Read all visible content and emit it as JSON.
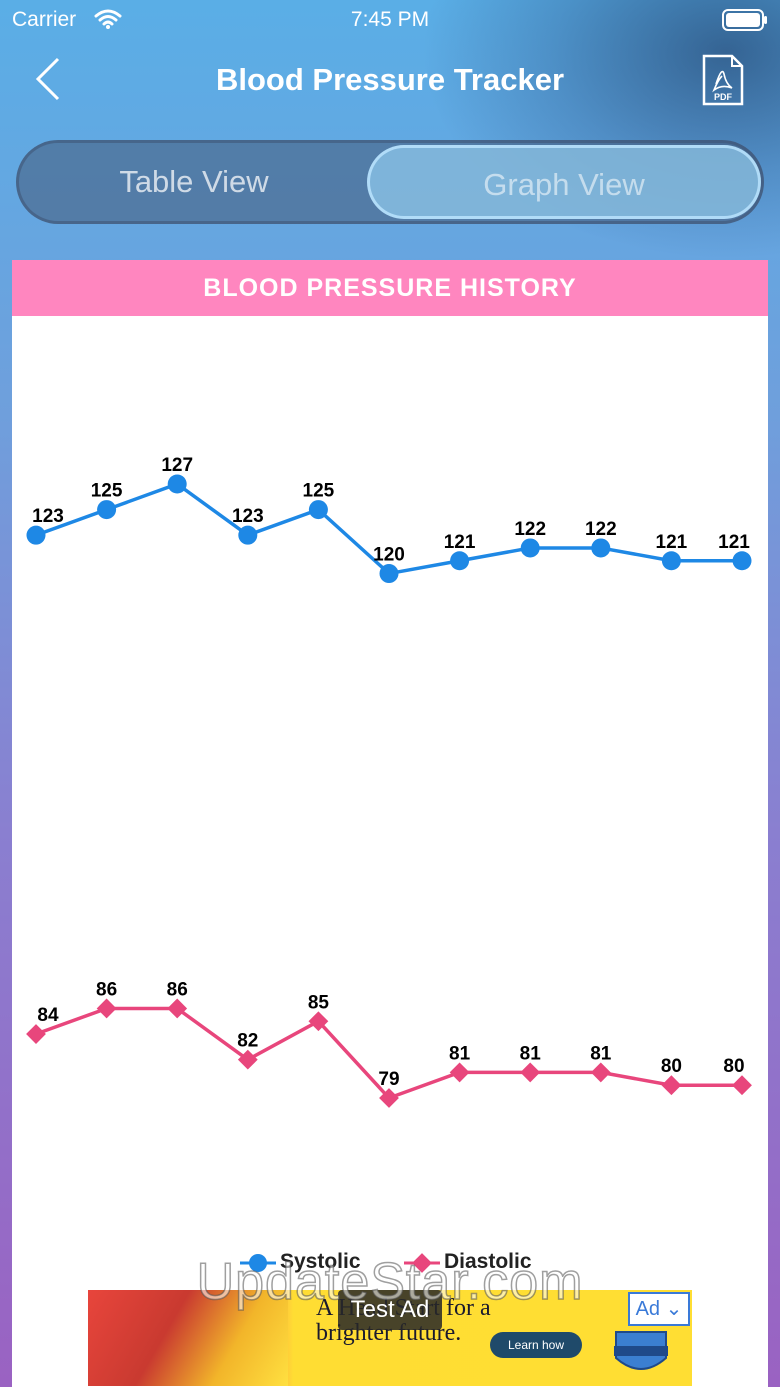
{
  "status_bar": {
    "carrier": "Carrier",
    "time": "7:45 PM"
  },
  "nav": {
    "title": "Blood Pressure Tracker",
    "back_icon": "chevron-left-icon",
    "pdf_icon": "pdf-file-icon",
    "pdf_label": "PDF"
  },
  "segmented": {
    "table_label": "Table View",
    "graph_label": "Graph View",
    "selected": "Graph View"
  },
  "card": {
    "header": "BLOOD PRESSURE HISTORY"
  },
  "chart_data": {
    "type": "line",
    "title": "BLOOD PRESSURE HISTORY",
    "x": [
      1,
      2,
      3,
      4,
      5,
      6,
      7,
      8,
      9,
      10,
      11
    ],
    "series": [
      {
        "name": "Systolic",
        "color": "#1e88e5",
        "marker": "circle",
        "values": [
          123,
          125,
          127,
          123,
          125,
          120,
          121,
          122,
          122,
          121,
          121
        ]
      },
      {
        "name": "Diastolic",
        "color": "#e8467c",
        "marker": "diamond",
        "values": [
          84,
          86,
          86,
          82,
          85,
          79,
          81,
          81,
          81,
          80,
          80
        ]
      }
    ],
    "grid": false,
    "legend": "bottom-center"
  },
  "ad": {
    "headline": "A Head Start for a brighter future.",
    "cta": "Learn how",
    "badge": "Ad",
    "label": "Test Ad"
  },
  "watermark": "UpdateStar.com"
}
